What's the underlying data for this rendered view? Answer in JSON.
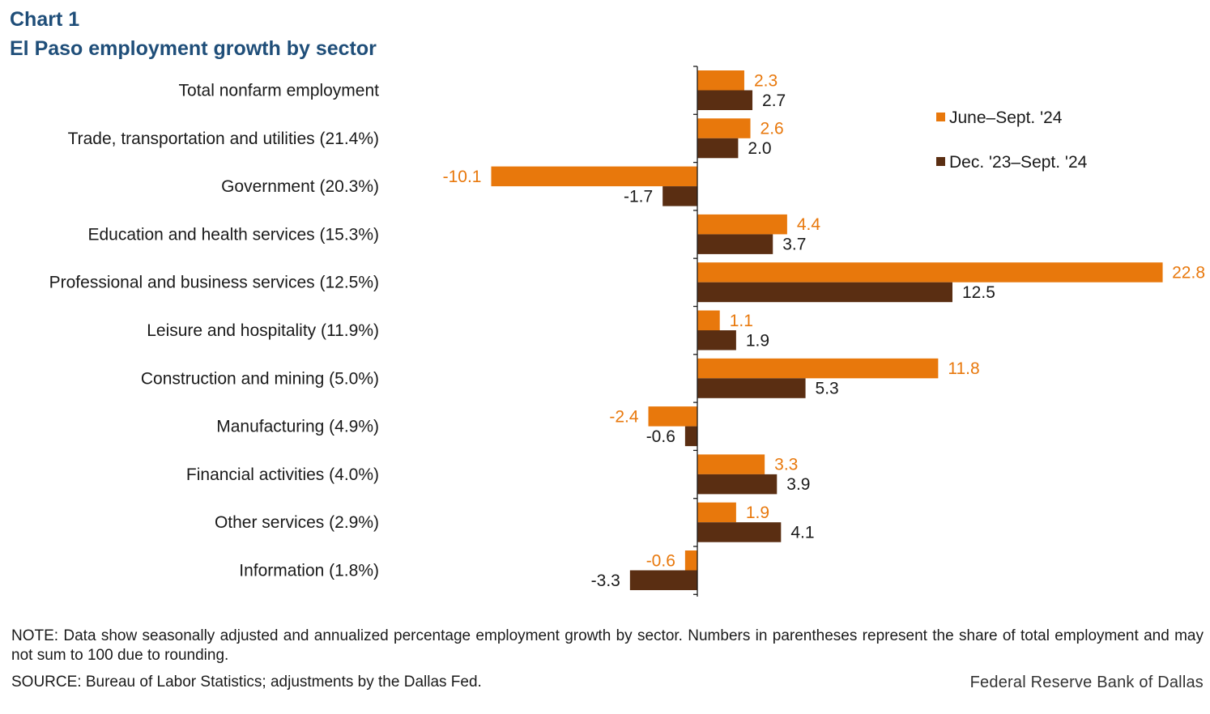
{
  "header": {
    "label": "Chart 1",
    "title": "El Paso employment growth by sector"
  },
  "chart_data": {
    "type": "bar",
    "orientation": "horizontal",
    "title": "El Paso employment growth by sector",
    "xlabel": "",
    "ylabel": "",
    "xlim": [
      -10.1,
      22.8
    ],
    "grid": false,
    "legend_position": "top-right",
    "categories": [
      "Total nonfarm employment",
      "Trade, transportation and utilities (21.4%)",
      "Government (20.3%)",
      "Education and health services (15.3%)",
      "Professional and business services (12.5%)",
      "Leisure and hospitality (11.9%)",
      "Construction and mining (5.0%)",
      "Manufacturing (4.9%)",
      "Financial activities (4.0%)",
      "Other services (2.9%)",
      "Information (1.8%)"
    ],
    "series": [
      {
        "name": "June–Sept. '24",
        "color": "#e8780c",
        "values": [
          2.3,
          2.6,
          -10.1,
          4.4,
          22.8,
          1.1,
          11.8,
          -2.4,
          3.3,
          1.9,
          -0.6
        ],
        "labels": [
          "2.3",
          "2.6",
          "-10.1",
          "4.4",
          "22.8",
          "1.1",
          "11.8",
          "-2.4",
          "3.3",
          "1.9",
          "-0.6"
        ]
      },
      {
        "name": "Dec. '23–Sept. '24",
        "color": "#5a2e12",
        "values": [
          2.7,
          2.0,
          -1.7,
          3.7,
          12.5,
          1.9,
          5.3,
          -0.6,
          3.9,
          4.1,
          -3.3
        ],
        "labels": [
          "2.7",
          "2.0",
          "-1.7",
          "3.7",
          "12.5",
          "1.9",
          "5.3",
          "-0.6",
          "3.9",
          "4.1",
          "-3.3"
        ]
      }
    ]
  },
  "footer": {
    "note": "NOTE: Data show seasonally adjusted and annualized percentage employment growth by sector. Numbers in parentheses represent the share of total employment and may not sum to 100 due to rounding.",
    "source": "SOURCE: Bureau of Labor Statistics; adjustments by the Dallas Fed.",
    "credit": "Federal Reserve Bank of Dallas"
  }
}
